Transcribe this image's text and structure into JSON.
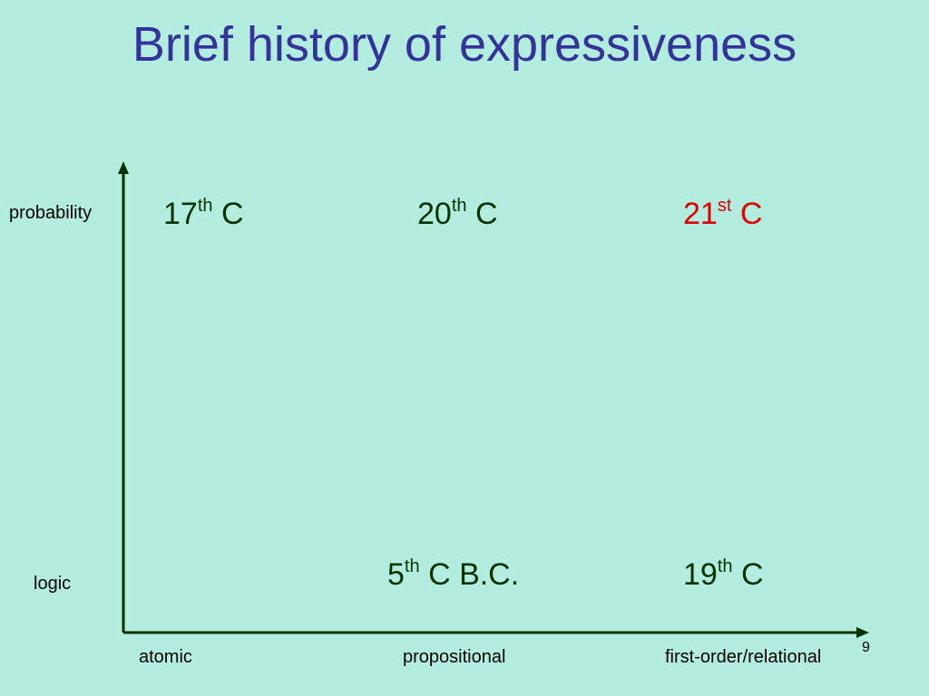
{
  "title": "Brief history of expressiveness",
  "y_labels": [
    "probability",
    "logic"
  ],
  "x_labels": [
    "atomic",
    "propositional",
    "first-order/relational"
  ],
  "entries": [
    {
      "number": "17",
      "sup": "th",
      "suffix": "C",
      "color": "#003300"
    },
    {
      "number": "20",
      "sup": "th",
      "suffix": "C",
      "color": "#003300"
    },
    {
      "number": "21",
      "sup": "st",
      "suffix": "C",
      "color": "#e00000"
    },
    {
      "number": "5",
      "sup": "th",
      "suffix": "C B.C.",
      "color": "#003300"
    },
    {
      "number": "19",
      "sup": "th",
      "suffix": "C",
      "color": "#003300"
    }
  ],
  "page_number": "9"
}
